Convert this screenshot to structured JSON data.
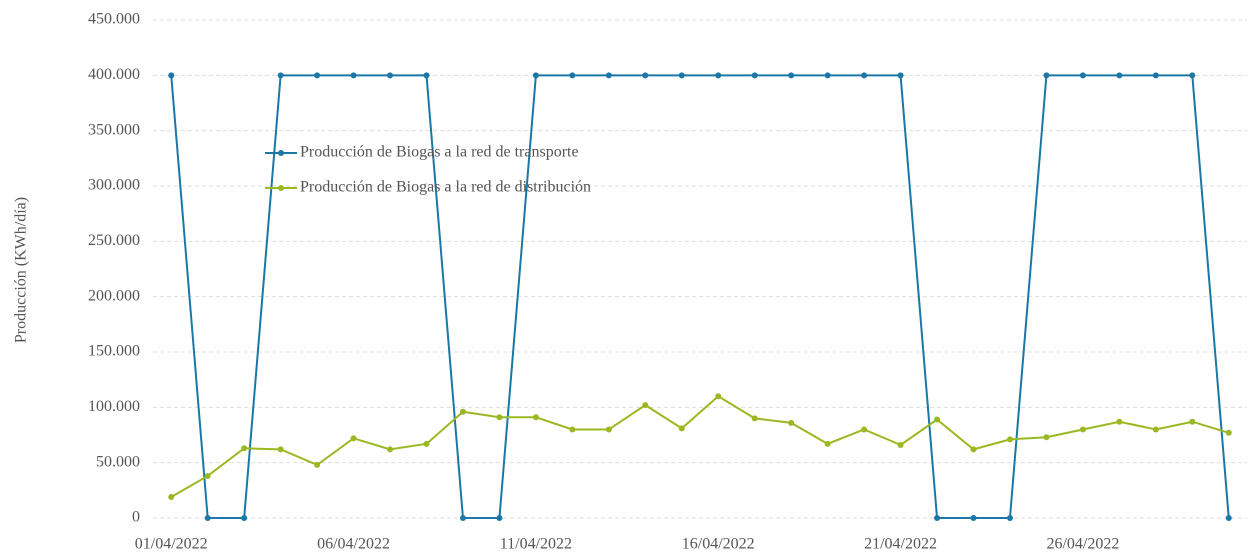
{
  "chart_data": {
    "type": "line",
    "y_label": "Producción (KWh/día)",
    "categories": [
      "01/04/2022",
      null,
      null,
      null,
      null,
      "06/04/2022",
      null,
      null,
      null,
      null,
      "11/04/2022",
      null,
      null,
      null,
      null,
      "16/04/2022",
      null,
      null,
      null,
      null,
      "21/04/2022",
      null,
      null,
      null,
      null,
      "26/04/2022",
      null,
      null,
      null,
      null
    ],
    "series": [
      {
        "name": "Producción de Biogas a la red de transporte",
        "color": "#1b77a6",
        "values": [
          400000,
          0,
          0,
          400000,
          400000,
          400000,
          400000,
          400000,
          0,
          0,
          400000,
          400000,
          400000,
          400000,
          400000,
          400000,
          400000,
          400000,
          400000,
          400000,
          400000,
          0,
          0,
          0,
          400000,
          400000,
          400000,
          400000,
          400000,
          0
        ]
      },
      {
        "name": "Producción de Biogas a la red de distribución",
        "color": "#9ab822",
        "values": [
          19000,
          38000,
          63000,
          62000,
          48000,
          72000,
          62000,
          67000,
          96000,
          91000,
          91000,
          80000,
          80000,
          102000,
          81000,
          110000,
          90000,
          86000,
          67000,
          80000,
          66000,
          89000,
          62000,
          71000,
          73000,
          80000,
          87000,
          80000,
          87000,
          77000
        ]
      }
    ],
    "ylim": [
      0,
      450000
    ],
    "yticks": [
      0,
      {
        "value": 50000,
        "label": "50.000"
      },
      {
        "value": 100000,
        "label": "100.000"
      },
      {
        "value": 150000,
        "label": "150.000"
      },
      {
        "value": 200000,
        "label": "200.000"
      },
      {
        "value": 250000,
        "label": "250.000"
      },
      {
        "value": 300000,
        "label": "300.000"
      },
      {
        "value": 350000,
        "label": "350.000"
      },
      {
        "value": 400000,
        "label": "400.000"
      },
      {
        "value": 450000,
        "label": "450.000"
      }
    ],
    "grid": true
  }
}
